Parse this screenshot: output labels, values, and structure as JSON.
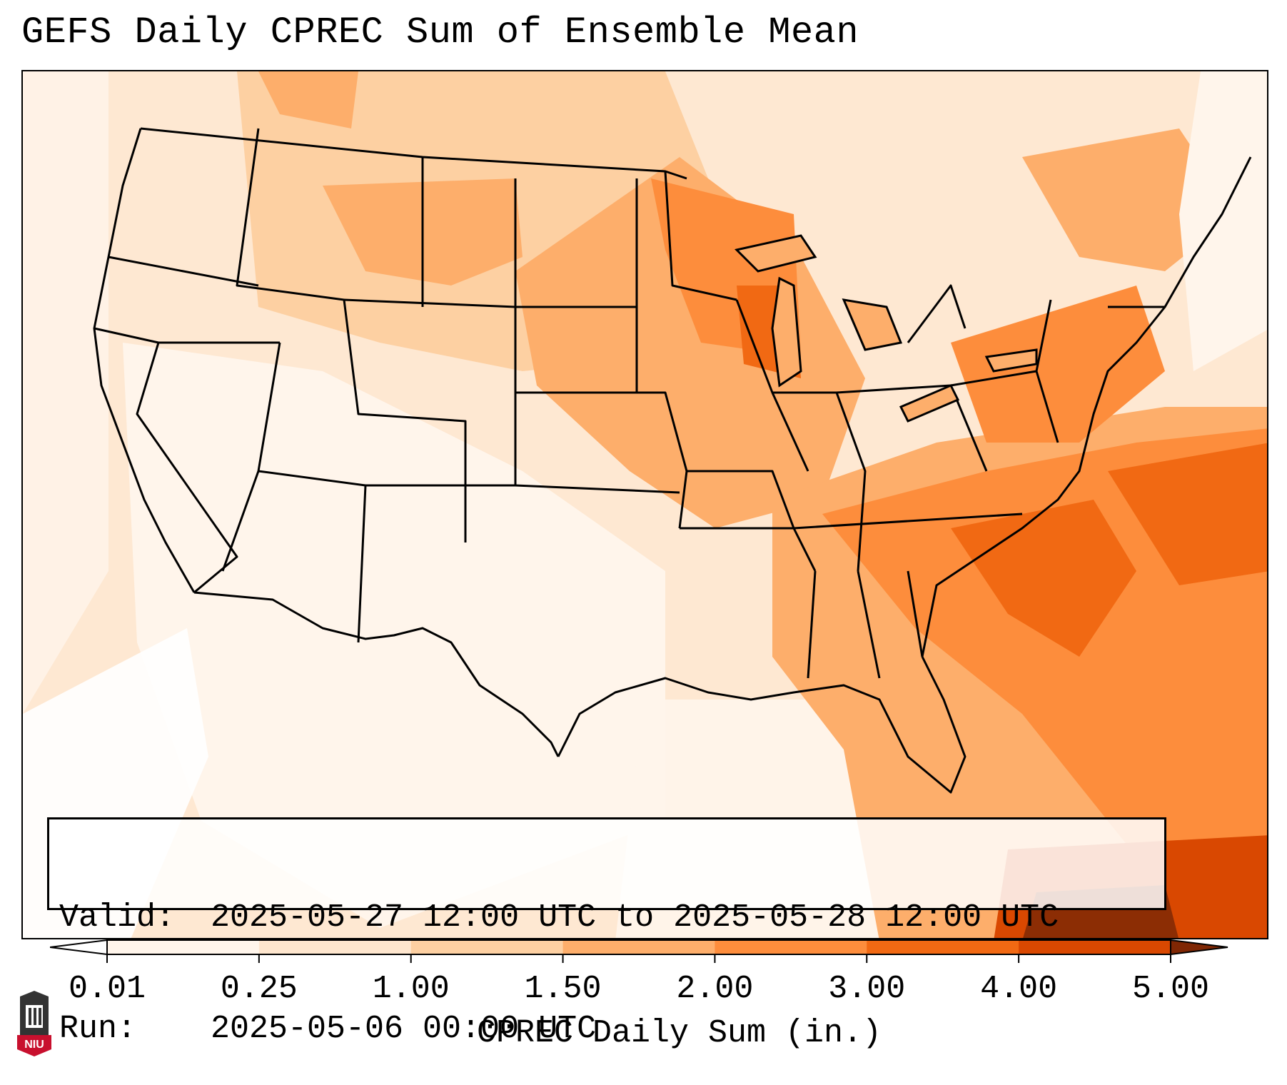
{
  "title": "GEFS Daily CPREC Sum of Ensemble Mean",
  "info": {
    "valid_label": "Valid:",
    "valid_value": "2025-05-27 12:00 UTC to 2025-05-28 12:00 UTC",
    "run_label": "Run:",
    "run_value": "2025-05-06 00:00 UTC"
  },
  "colorbar": {
    "label": "CPREC Daily Sum (in.)",
    "ticks": [
      "0.01",
      "0.25",
      "1.00",
      "1.50",
      "2.00",
      "3.00",
      "4.00",
      "5.00"
    ],
    "colors": [
      "#fff5eb",
      "#fee6ce",
      "#fdd0a2",
      "#fdae6b",
      "#fd8d3c",
      "#f16913",
      "#d94801",
      "#8c2d04"
    ],
    "under_color": "#ffffff",
    "over_color": "#7f2704"
  },
  "logo": {
    "text": "NIU",
    "colors": {
      "shield": "#c8102e",
      "building": "#333333"
    }
  },
  "map": {
    "region": "Contiguous United States",
    "variable": "Convective precipitation (CPREC) daily sum, ensemble mean"
  }
}
